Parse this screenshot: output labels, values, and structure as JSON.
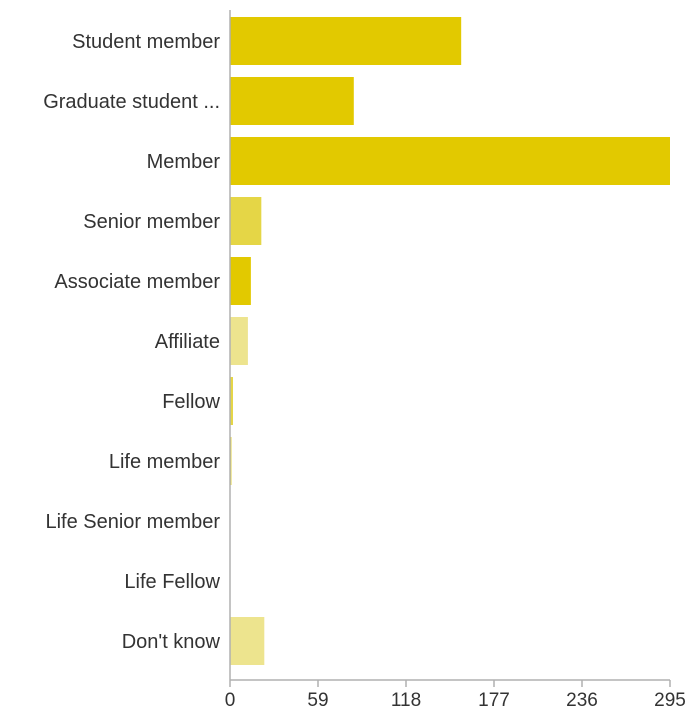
{
  "chart_data": {
    "type": "bar",
    "orientation": "horizontal",
    "categories": [
      "Student member",
      "Graduate student ...",
      "Member",
      "Senior member",
      "Associate member",
      "Affiliate",
      "Fellow",
      "Life member",
      "Life Senior member",
      "Life Fellow",
      "Don't know"
    ],
    "values": [
      155,
      83,
      295,
      21,
      14,
      12,
      2,
      1,
      0,
      0,
      23
    ],
    "xlim": [
      0,
      295
    ],
    "xticks": [
      0,
      59,
      118,
      177,
      236,
      295
    ],
    "title": "",
    "xlabel": "",
    "ylabel": "",
    "grid": false,
    "colors": {
      "primary": "#e2c900",
      "secondary": "#e5d646",
      "light": "#ede48e",
      "axis": "#b0b0b0"
    },
    "bar_colors": [
      "#e2c900",
      "#e2c900",
      "#e2c900",
      "#e5d646",
      "#e2c900",
      "#ede48e",
      "#e5d646",
      "#e5d646",
      "#e5d646",
      "#e5d646",
      "#ede48e"
    ]
  }
}
